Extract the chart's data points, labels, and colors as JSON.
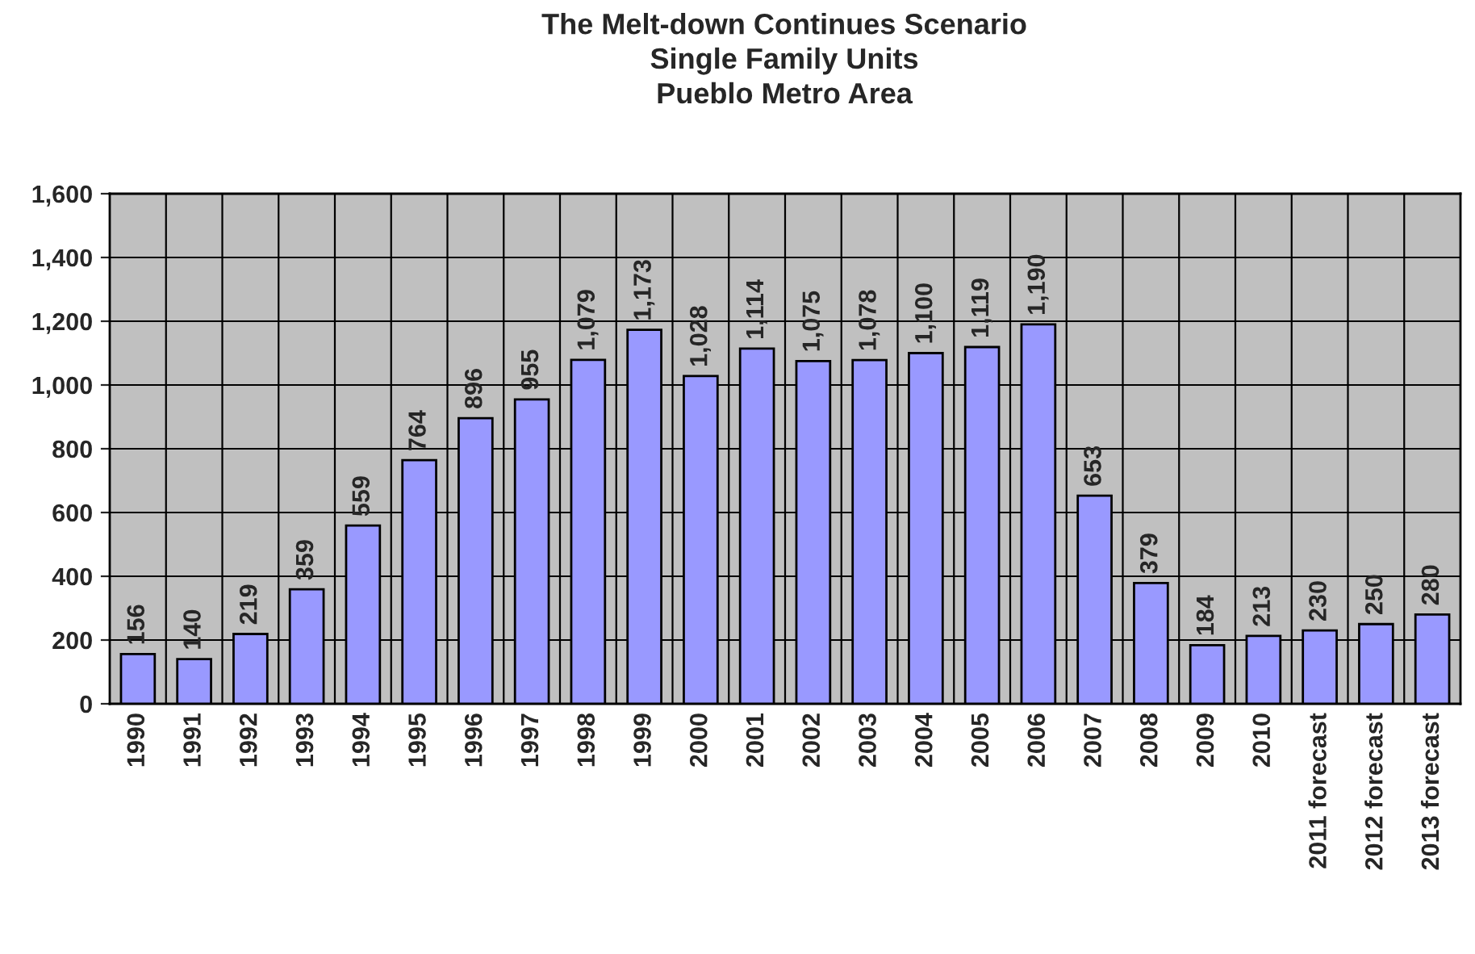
{
  "chart_data": {
    "type": "bar",
    "title": "The Melt-down Continues Scenario\nSingle Family Units\nPueblo Metro Area",
    "categories": [
      "1990",
      "1991",
      "1992",
      "1993",
      "1994",
      "1995",
      "1996",
      "1997",
      "1998",
      "1999",
      "2000",
      "2001",
      "2002",
      "2003",
      "2004",
      "2005",
      "2006",
      "2007",
      "2008",
      "2009",
      "2010",
      "2011 forecast",
      "2012 forecast",
      "2013 forecast"
    ],
    "values": [
      156,
      140,
      219,
      359,
      559,
      764,
      896,
      955,
      1079,
      1173,
      1028,
      1114,
      1075,
      1078,
      1100,
      1119,
      1190,
      653,
      379,
      184,
      213,
      230,
      250,
      280
    ],
    "value_labels": [
      "156",
      "140",
      "219",
      "359",
      "559",
      "764",
      "896",
      "955",
      "1,079",
      "1,173",
      "1,028",
      "1,114",
      "1,075",
      "1,078",
      "1,100",
      "1,119",
      "1,190",
      "653",
      "379",
      "184",
      "213",
      "230",
      "250",
      "280"
    ],
    "color": "#9999ff",
    "ylim": [
      0,
      1600
    ],
    "yticks": [
      0,
      200,
      400,
      600,
      800,
      {
        "value": 1000,
        "label": "1,000"
      },
      {
        "value": 1200,
        "label": "1,200"
      },
      {
        "value": 1400,
        "label": "1,400"
      },
      {
        "value": 1600,
        "label": "1,600"
      }
    ],
    "grid": true
  }
}
